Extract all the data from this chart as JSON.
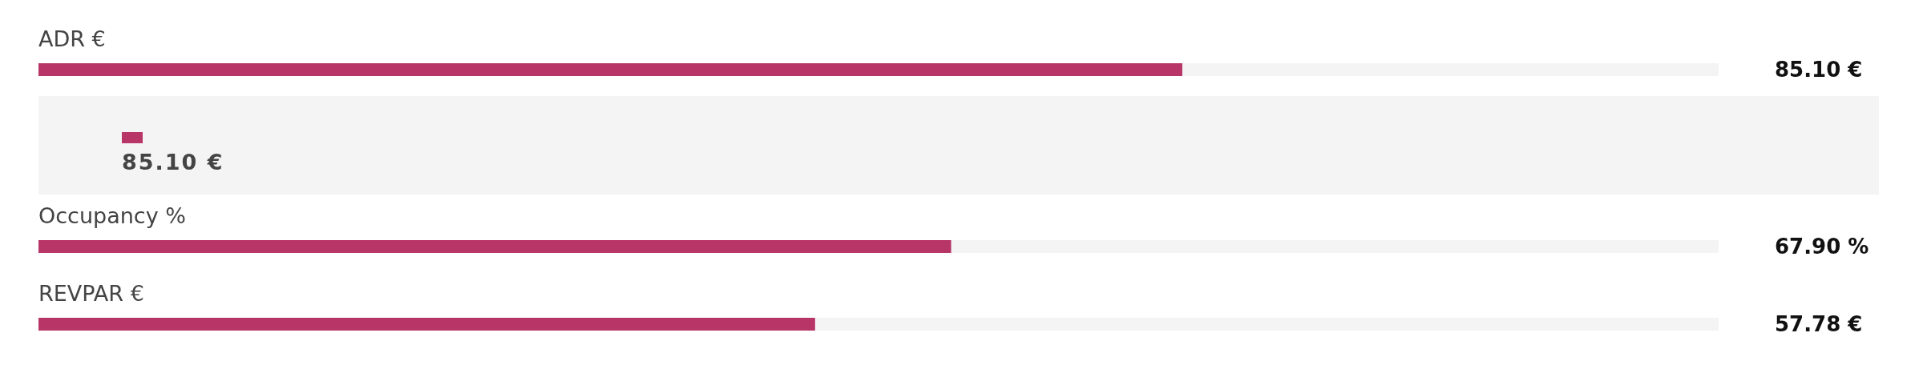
{
  "chart_data": {
    "type": "bar",
    "orientation": "horizontal",
    "categories": [
      "ADR €",
      "Occupancy %",
      "REVPAR €"
    ],
    "values": [
      85.1,
      67.9,
      57.78
    ],
    "value_labels": [
      "85.10 €",
      "67.90 %",
      "57.78 €"
    ],
    "color": "#b83567",
    "xlim": [
      0,
      125
    ],
    "tick_labels": false,
    "grid": false,
    "annotations": [
      "85.10 €"
    ]
  }
}
